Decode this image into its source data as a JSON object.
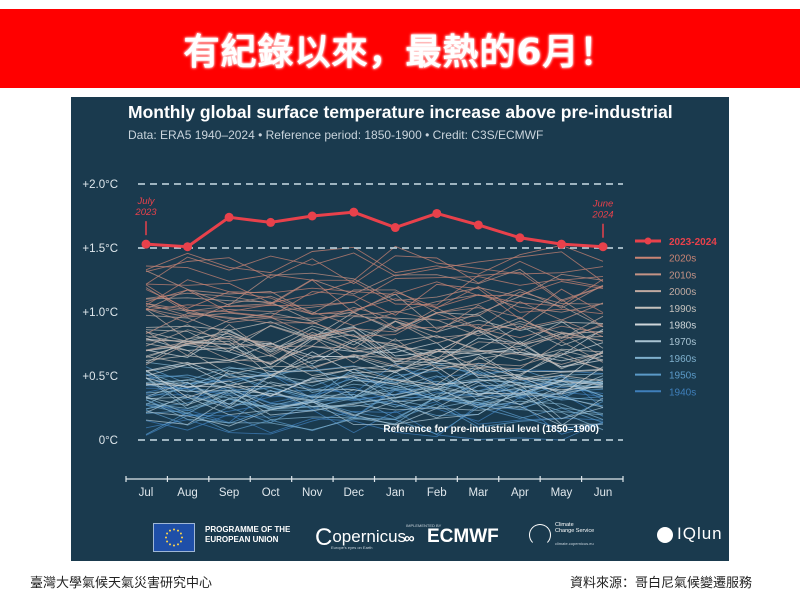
{
  "banner": {
    "title": "有紀錄以來，最熱的6月！"
  },
  "chart_data": {
    "type": "line",
    "title": "Monthly global surface temperature increase above pre-industrial",
    "subtitle": "Data: ERA5 1940–2024 • Reference period: 1850-1900 • Credit: C3S/ECMWF",
    "xlabel": "",
    "ylabel": "",
    "ylim": [
      -0.1,
      2.1
    ],
    "y_ticks": [
      {
        "value": 2.0,
        "label": "+2.0°C"
      },
      {
        "value": 1.5,
        "label": "+1.5°C"
      },
      {
        "value": 1.0,
        "label": "+1.0°C"
      },
      {
        "value": 0.5,
        "label": "+0.5°C"
      },
      {
        "value": 0.0,
        "label": "0°C"
      }
    ],
    "dashed_reference_lines": [
      2.0,
      1.5,
      0.0
    ],
    "categories": [
      "Jul",
      "Aug",
      "Sep",
      "Oct",
      "Nov",
      "Dec",
      "Jan",
      "Feb",
      "Mar",
      "Apr",
      "May",
      "Jun"
    ],
    "highlight_series": {
      "name": "2023-2024",
      "color": "#e8414b",
      "values": [
        1.53,
        1.51,
        1.74,
        1.7,
        1.75,
        1.78,
        1.66,
        1.77,
        1.68,
        1.58,
        1.53,
        1.51
      ]
    },
    "annotations": [
      {
        "label_line1": "July",
        "label_line2": "2023",
        "category": "Jul"
      },
      {
        "label_line1": "June",
        "label_line2": "2024",
        "category": "Jun"
      },
      {
        "text": "Reference for pre-industrial level (1850–1900)",
        "y": 0.0
      }
    ],
    "decade_series": [
      {
        "name": "2020s",
        "color": "#c98474",
        "approx_mean": 1.25
      },
      {
        "name": "2010s",
        "color": "#c49386",
        "approx_mean": 1.05
      },
      {
        "name": "2000s",
        "color": "#c0aaa2",
        "approx_mean": 0.85
      },
      {
        "name": "1990s",
        "color": "#c6c2bd",
        "approx_mean": 0.7
      },
      {
        "name": "1980s",
        "color": "#cfd6da",
        "approx_mean": 0.6
      },
      {
        "name": "1970s",
        "color": "#a9c4d3",
        "approx_mean": 0.4
      },
      {
        "name": "1960s",
        "color": "#7fb0cd",
        "approx_mean": 0.35
      },
      {
        "name": "1950s",
        "color": "#5b9ac8",
        "approx_mean": 0.3
      },
      {
        "name": "1940s",
        "color": "#3f7fbb",
        "approx_mean": 0.3
      }
    ],
    "legend_position": "right",
    "grid": false
  },
  "logos": {
    "eu": "PROGRAMME OF THE EUROPEAN UNION",
    "eu_line1": "PROGRAMME OF THE",
    "eu_line2": "EUROPEAN UNION",
    "copernicus": "opernicus",
    "copernicus_initial": "C",
    "copernicus_tagline": "Europe's eyes on Earth",
    "ecmwf_implemented": "IMPLEMENTED BY",
    "ecmwf": "ECMWF",
    "c3s_line1": "Climate",
    "c3s_line2": "Change Service",
    "c3s_url": "climate.copernicus.eu",
    "iqlun": "IQlun"
  },
  "footer": {
    "left": "臺灣大學氣候天氣災害研究中心",
    "right": "資料來源：哥白尼氣候變遷服務"
  }
}
